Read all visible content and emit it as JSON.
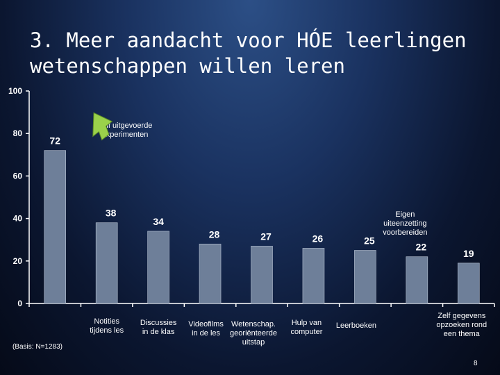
{
  "slide": {
    "title": "3. Meer aandacht voor HÓE leerlingen wetenschappen willen leren",
    "basis": "(Basis: N=1283)",
    "page_number": "8"
  },
  "colors": {
    "bar": "#6e7f99",
    "axis": "#ffffff",
    "text": "#ffffff",
    "callout": "#9ad14b"
  },
  "chart_data": {
    "type": "bar",
    "title": "",
    "xlabel": "",
    "ylabel": "",
    "ylim": [
      0,
      100
    ],
    "yticks": [
      0,
      20,
      40,
      60,
      80,
      100
    ],
    "grid": false,
    "categories": [
      "Zelf uitgevoerde experimenten",
      "Notities tijdens les",
      "Discussies in de klas",
      "Videofilms in de les",
      "Wetenschap. georiënteerde uitstap",
      "Hulp van computer",
      "Leerboeken",
      "Eigen uiteenzetting voorbereiden",
      "Zelf gegevens opzoeken rond een thema"
    ],
    "values": [
      72,
      38,
      34,
      28,
      27,
      26,
      25,
      22,
      19
    ]
  }
}
